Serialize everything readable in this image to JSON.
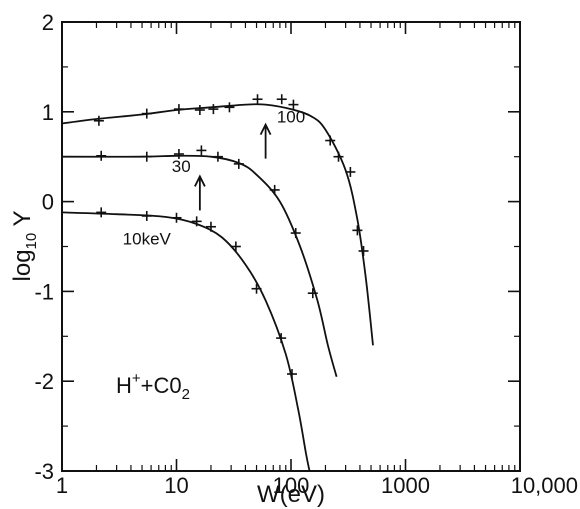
{
  "chart_data": {
    "type": "line",
    "xlabel": "W(eV)",
    "ylabel_main": "log",
    "ylabel_sub": "10",
    "ylabel_end": " Y",
    "x_scale": "log",
    "xlim": [
      1,
      10000
    ],
    "ylim": [
      -3,
      2
    ],
    "x_ticks": [
      1,
      10,
      100,
      1000,
      10000
    ],
    "x_tick_labels": [
      "1",
      "10",
      "100",
      "1000",
      "10,000"
    ],
    "y_ticks": [
      -3,
      -2,
      -1,
      0,
      1,
      2
    ],
    "y_tick_labels": [
      "-3",
      "-2",
      "-1",
      "0",
      "1",
      "2"
    ],
    "grid": false,
    "annotation": {
      "main": "H",
      "sup": "+",
      "mid": "+C0",
      "sub": "2"
    },
    "series": [
      {
        "name": "100",
        "curve": [
          [
            1,
            0.87
          ],
          [
            2,
            0.92
          ],
          [
            5,
            0.97
          ],
          [
            10,
            1.02
          ],
          [
            20,
            1.05
          ],
          [
            40,
            1.08
          ],
          [
            60,
            1.08
          ],
          [
            100,
            1.03
          ],
          [
            150,
            0.95
          ],
          [
            200,
            0.8
          ],
          [
            300,
            0.35
          ],
          [
            380,
            -0.2
          ],
          [
            450,
            -0.85
          ],
          [
            520,
            -1.6
          ]
        ],
        "points": [
          [
            2.1,
            0.9
          ],
          [
            5.5,
            0.98
          ],
          [
            10.5,
            1.03
          ],
          [
            16,
            1.02
          ],
          [
            21,
            1.03
          ],
          [
            29,
            1.05
          ],
          [
            51,
            1.14
          ],
          [
            83,
            1.14
          ],
          [
            105,
            1.08
          ],
          [
            220,
            0.68
          ],
          [
            260,
            0.5
          ],
          [
            330,
            0.33
          ],
          [
            380,
            -0.32
          ],
          [
            430,
            -0.55
          ]
        ],
        "arrow_x": 60
      },
      {
        "name": "30",
        "curve": [
          [
            1,
            0.5
          ],
          [
            5,
            0.5
          ],
          [
            10,
            0.51
          ],
          [
            20,
            0.5
          ],
          [
            35,
            0.43
          ],
          [
            50,
            0.3
          ],
          [
            80,
            0.0
          ],
          [
            120,
            -0.5
          ],
          [
            170,
            -1.1
          ],
          [
            210,
            -1.6
          ],
          [
            250,
            -1.95
          ]
        ],
        "points": [
          [
            2.2,
            0.51
          ],
          [
            5.5,
            0.5
          ],
          [
            10.5,
            0.53
          ],
          [
            16.5,
            0.57
          ],
          [
            23,
            0.5
          ],
          [
            35,
            0.42
          ],
          [
            72,
            0.13
          ],
          [
            110,
            -0.35
          ],
          [
            155,
            -1.02
          ]
        ],
        "arrow_x": 16
      },
      {
        "name": "10keV",
        "curve": [
          [
            1,
            -0.12
          ],
          [
            3,
            -0.14
          ],
          [
            8,
            -0.17
          ],
          [
            15,
            -0.25
          ],
          [
            25,
            -0.4
          ],
          [
            40,
            -0.7
          ],
          [
            60,
            -1.1
          ],
          [
            90,
            -1.7
          ],
          [
            115,
            -2.3
          ],
          [
            135,
            -2.8
          ],
          [
            145,
            -3.0
          ]
        ],
        "points": [
          [
            2.2,
            -0.12
          ],
          [
            5.5,
            -0.16
          ],
          [
            10,
            -0.18
          ],
          [
            15,
            -0.22
          ],
          [
            20,
            -0.28
          ],
          [
            33,
            -0.5
          ],
          [
            50,
            -0.97
          ],
          [
            82,
            -1.52
          ],
          [
            102,
            -1.92
          ]
        ]
      }
    ]
  }
}
